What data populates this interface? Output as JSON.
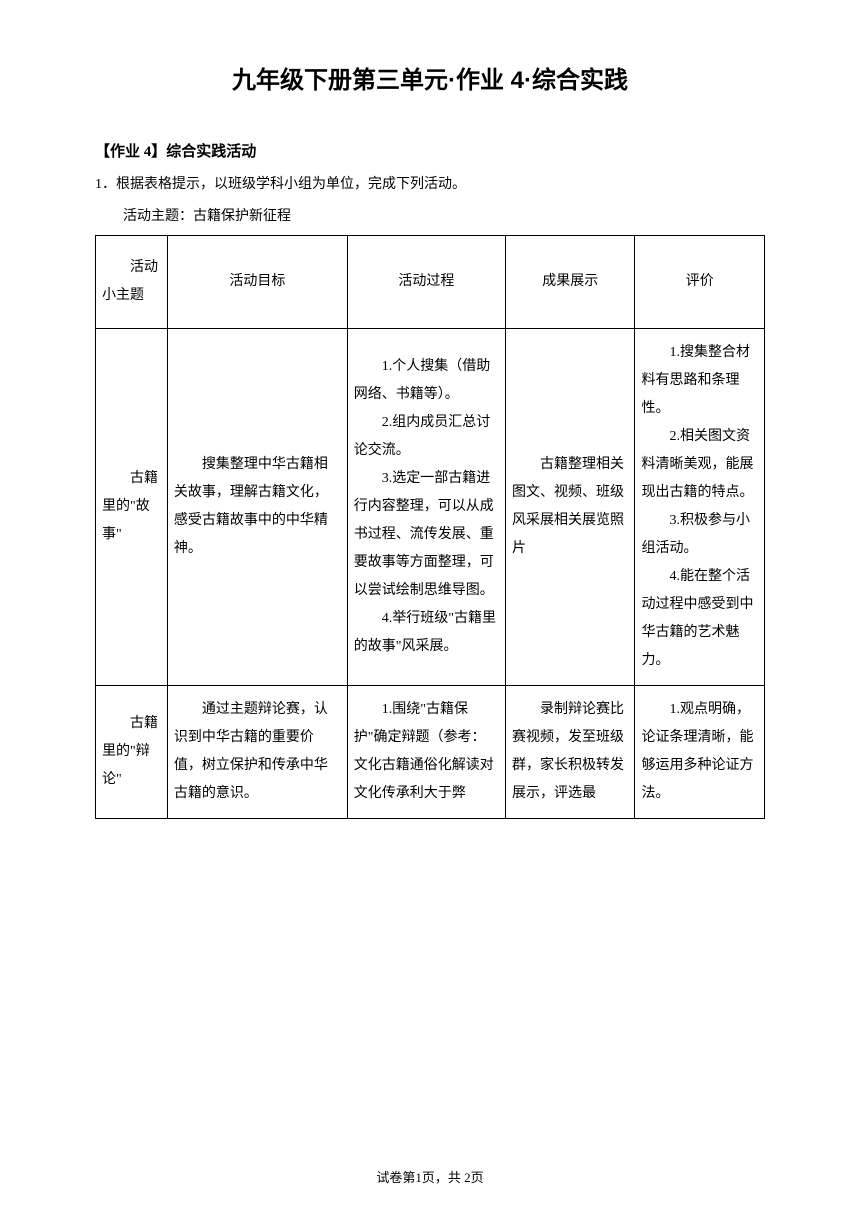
{
  "title": "九年级下册第三单元·作业 4·综合实践",
  "section_header": "【作业 4】综合实践活动",
  "instruction": "1．根据表格提示，以班级学科小组为单位，完成下列活动。",
  "activity_theme": "活动主题：古籍保护新征程",
  "table": {
    "headers": {
      "col1": "活动小主题",
      "col2": "活动目标",
      "col3": "活动过程",
      "col4": "成果展示",
      "col5": "评价"
    },
    "rows": [
      {
        "subtheme": "古籍里的\"故事\"",
        "goal": "搜集整理中华古籍相关故事，理解古籍文化，感受古籍故事中的中华精神。",
        "process": [
          "1.个人搜集（借助网络、书籍等）。",
          "2.组内成员汇总讨论交流。",
          "3.选定一部古籍进行内容整理，可以从成书过程、流传发展、重要故事等方面整理，可以尝试绘制思维导图。",
          "4.举行班级\"古籍里的故事\"风采展。"
        ],
        "result": "古籍整理相关图文、视频、班级风采展相关展览照片",
        "evaluation": [
          "1.搜集整合材料有思路和条理性。",
          "2.相关图文资料清晰美观，能展现出古籍的特点。",
          "3.积极参与小组活动。",
          "4.能在整个活动过程中感受到中华古籍的艺术魅力。"
        ]
      },
      {
        "subtheme": "古籍里的\"辩论\"",
        "goal": "通过主题辩论赛，认识到中华古籍的重要价值，树立保护和传承中华古籍的意识。",
        "process": [
          "1.围绕\"古籍保护\"确定辩题（参考：文化古籍通俗化解读对文化传承利大于弊"
        ],
        "result": "录制辩论赛比赛视频，发至班级群，家长积极转发展示，评选最",
        "evaluation": [
          "1.观点明确，论证条理清晰，能够运用多种论证方法。"
        ]
      }
    ]
  },
  "footer": "试卷第1页，共 2页",
  "colors": {
    "text": "#000000",
    "background": "#ffffff",
    "border": "#000000"
  },
  "typography": {
    "title_fontsize": 24,
    "body_fontsize": 14,
    "footer_fontsize": 13
  }
}
